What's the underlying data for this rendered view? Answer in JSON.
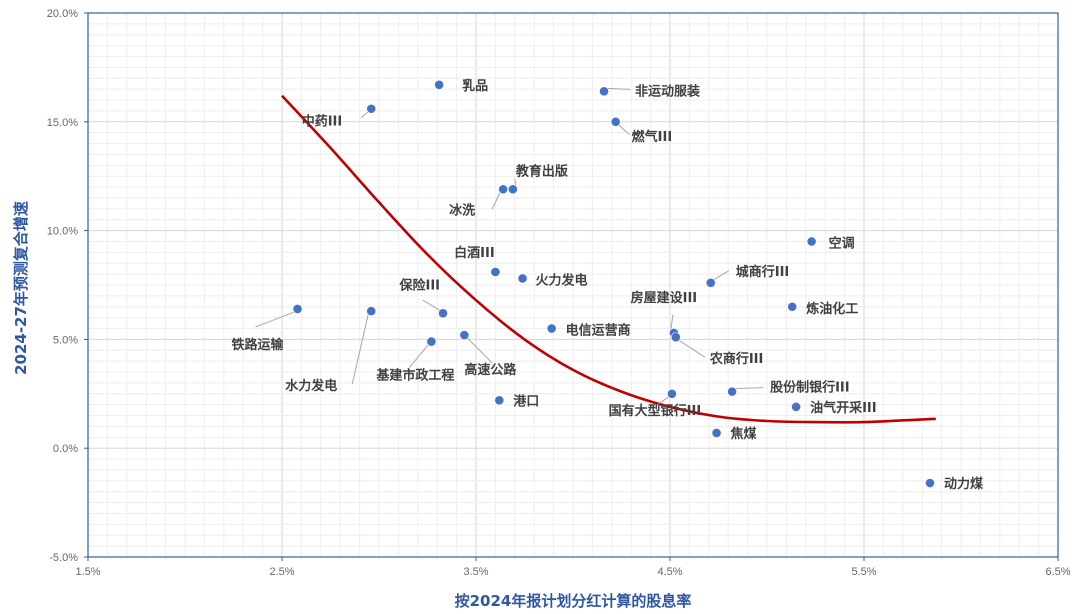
{
  "chart_data": {
    "type": "scatter",
    "xlabel": "按2024年报计划分红计算的股息率",
    "ylabel": "2024-27年预测复合增速",
    "xlim": [
      1.5,
      6.5
    ],
    "ylim": [
      -5.0,
      20.0
    ],
    "x_ticks": [
      "1.5%",
      "2.5%",
      "3.5%",
      "4.5%",
      "5.5%",
      "6.5%"
    ],
    "y_ticks": [
      "-5.0%",
      "0.0%",
      "5.0%",
      "10.0%",
      "15.0%",
      "20.0%"
    ],
    "grid": true,
    "marker_color": "#4472c4",
    "trend_color": "#c00000",
    "points": [
      {
        "name": "乳品",
        "x": 3.31,
        "y": 16.7
      },
      {
        "name": "非运动服装",
        "x": 4.16,
        "y": 16.4
      },
      {
        "name": "中药III",
        "x": 2.96,
        "y": 15.6
      },
      {
        "name": "燃气III",
        "x": 4.22,
        "y": 15.0
      },
      {
        "name": "冰洗",
        "x": 3.64,
        "y": 11.9
      },
      {
        "name": "教育出版",
        "x": 3.69,
        "y": 11.9
      },
      {
        "name": "空调",
        "x": 5.23,
        "y": 9.5
      },
      {
        "name": "白酒III",
        "x": 3.6,
        "y": 8.1
      },
      {
        "name": "火力发电",
        "x": 3.74,
        "y": 7.8
      },
      {
        "name": "城商行III",
        "x": 4.71,
        "y": 7.6
      },
      {
        "name": "炼油化工",
        "x": 5.13,
        "y": 6.5
      },
      {
        "name": "铁路运输",
        "x": 2.58,
        "y": 6.4
      },
      {
        "name": "水力发电",
        "x": 2.96,
        "y": 6.3
      },
      {
        "name": "保险III",
        "x": 3.33,
        "y": 6.2
      },
      {
        "name": "电信运营商",
        "x": 3.89,
        "y": 5.5
      },
      {
        "name": "高速公路",
        "x": 3.44,
        "y": 5.2
      },
      {
        "name": "房屋建设III",
        "x": 4.52,
        "y": 5.3
      },
      {
        "name": "农商行III",
        "x": 4.53,
        "y": 5.1
      },
      {
        "name": "基建市政工程",
        "x": 3.27,
        "y": 4.9
      },
      {
        "name": "股份制银行III",
        "x": 4.82,
        "y": 2.6
      },
      {
        "name": "国有大型银行III",
        "x": 4.51,
        "y": 2.5
      },
      {
        "name": "港口",
        "x": 3.62,
        "y": 2.2
      },
      {
        "name": "油气开采III",
        "x": 5.15,
        "y": 1.9
      },
      {
        "name": "焦煤",
        "x": 4.74,
        "y": 0.7
      },
      {
        "name": "动力煤",
        "x": 5.84,
        "y": -1.6
      }
    ],
    "trendline": {
      "type": "polynomial",
      "x": [
        2.5,
        2.75,
        3.0,
        3.25,
        3.5,
        3.75,
        4.0,
        4.25,
        4.5,
        4.75,
        5.0,
        5.25,
        5.5,
        5.75,
        5.87
      ],
      "y": [
        16.2,
        13.8,
        11.3,
        8.9,
        6.8,
        5.0,
        3.6,
        2.6,
        1.9,
        1.45,
        1.25,
        1.2,
        1.2,
        1.3,
        1.35
      ]
    }
  }
}
